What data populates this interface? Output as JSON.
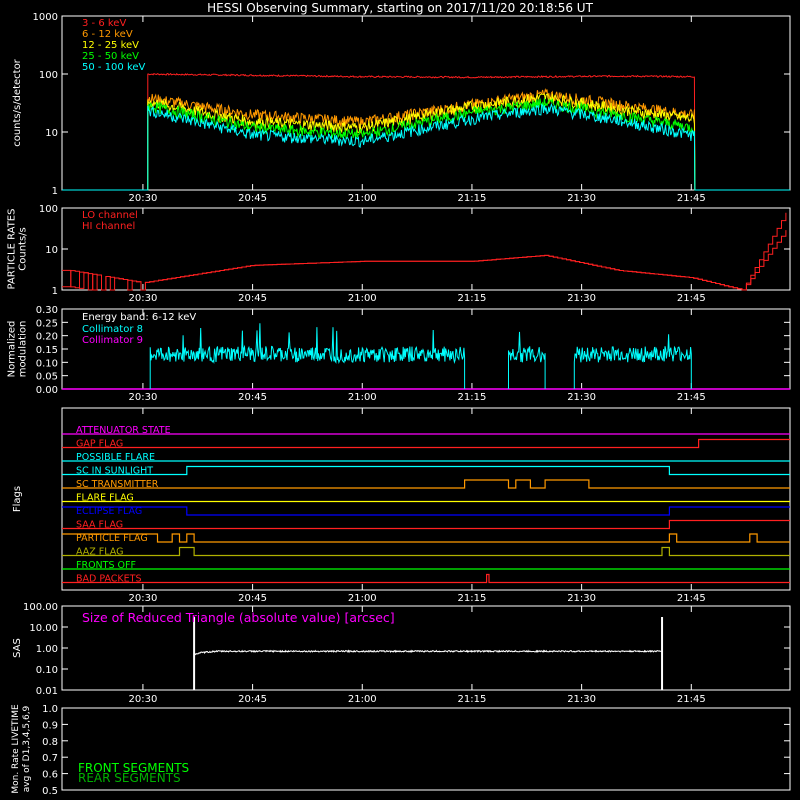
{
  "title": "HESSI Observing Summary, starting on 2017/11/20 20:18:56 UT",
  "colors": {
    "bg": "#000000",
    "axis": "#ffffff",
    "red": "#ff2020",
    "orange": "#ff9900",
    "yellow": "#ffff00",
    "green": "#00ff00",
    "cyan": "#00ffff",
    "magenta": "#ff00ff",
    "blue": "#0000ff",
    "olive": "#b0b000",
    "darkgreen": "#00b000",
    "gray": "#888888"
  },
  "time_axis": {
    "start": "20:18:56",
    "end": "21:58:30",
    "ticks": [
      "20:30",
      "20:45",
      "21:00",
      "21:15",
      "21:30",
      "21:45"
    ]
  },
  "chart_data": [
    {
      "type": "line",
      "id": "count_rates",
      "ylabel": "counts/s/detector",
      "scale": "log",
      "ylim": [
        1,
        1000
      ],
      "yticks": [
        "1",
        "10",
        "100",
        "1000"
      ],
      "legend_position": "top-left",
      "x": [
        "20:30",
        "20:45",
        "21:00",
        "21:15",
        "21:25",
        "21:35",
        "21:45"
      ],
      "series": [
        {
          "name": "3 - 6 keV",
          "color": "red",
          "values": [
            100,
            95,
            90,
            88,
            90,
            92,
            90
          ]
        },
        {
          "name": "6 - 12 keV",
          "color": "orange",
          "values": [
            40,
            20,
            15,
            30,
            45,
            30,
            20
          ]
        },
        {
          "name": "12 - 25 keV",
          "color": "yellow",
          "values": [
            35,
            15,
            12,
            28,
            40,
            25,
            17
          ]
        },
        {
          "name": "25 - 50 keV",
          "color": "green",
          "values": [
            30,
            12,
            9,
            22,
            32,
            20,
            12
          ]
        },
        {
          "name": "50 - 100 keV",
          "color": "cyan",
          "values": [
            25,
            9,
            7,
            17,
            26,
            16,
            9
          ]
        }
      ]
    },
    {
      "type": "line",
      "id": "particle_rates",
      "ylabel": "PARTICLE RATES\nCounts/s",
      "scale": "log",
      "ylim": [
        1,
        100
      ],
      "yticks": [
        "1",
        "10",
        "100"
      ],
      "legend_position": "top-left",
      "x": [
        "20:20",
        "20:30",
        "20:45",
        "21:00",
        "21:15",
        "21:25",
        "21:35",
        "21:45",
        "21:52",
        "21:58"
      ],
      "series": [
        {
          "name": "LO channel",
          "color": "red",
          "values": [
            3,
            1.5,
            4,
            5,
            5,
            7,
            3,
            2,
            1,
            80
          ]
        },
        {
          "name": "HI channel",
          "color": "red",
          "values": [
            3,
            1.5,
            4,
            5,
            5,
            7,
            3,
            2,
            1,
            30
          ]
        }
      ]
    },
    {
      "type": "line",
      "id": "modulation",
      "ylabel": "Normalized\nmodulation",
      "ylim": [
        0,
        0.3
      ],
      "yticks": [
        "0.00",
        "0.05",
        "0.10",
        "0.15",
        "0.20",
        "0.25",
        "0.30"
      ],
      "legend_position": "top-left",
      "legend_title": "Energy band: 6-12 keV",
      "series": [
        {
          "name": "Collimator 8",
          "color": "cyan",
          "mean": 0.13,
          "intervals": [
            [
              "20:31",
              "21:14"
            ],
            [
              "21:20",
              "21:25"
            ],
            [
              "21:29",
              "21:45"
            ]
          ]
        },
        {
          "name": "Collimator 9",
          "color": "magenta",
          "mean": 0.0
        }
      ]
    },
    {
      "type": "line",
      "id": "sas",
      "ylabel": "SAS",
      "scale": "log",
      "ylim": [
        0.01,
        100
      ],
      "yticks": [
        "0.01",
        "0.10",
        "1.00",
        "10.00",
        "100.00"
      ],
      "annotation": "Size of Reduced Triangle (absolute value) [arcsec]",
      "x": [
        "20:37",
        "20:38",
        "20:40",
        "21:00",
        "21:20",
        "21:41"
      ],
      "series": [
        {
          "color": "axis",
          "values": [
            0.5,
            0.6,
            0.7,
            0.7,
            0.7,
            0.7
          ]
        }
      ]
    },
    {
      "type": "line",
      "id": "livetime",
      "ylabel": "Mon. Rate LIVETIME\navg of D1,3,4,5,6,9",
      "ylim": [
        0.5,
        1.0
      ],
      "yticks": [
        "0.5",
        "0.6",
        "0.7",
        "0.8",
        "0.9",
        "1.0"
      ],
      "legend": [
        {
          "name": "FRONT SEGMENTS",
          "color": "green"
        },
        {
          "name": "REAR SEGMENTS",
          "color": "darkgreen"
        }
      ]
    }
  ],
  "flags": {
    "ylabel": "Flags",
    "items": [
      {
        "name": "ATTENUATOR STATE",
        "color": "magenta",
        "on": []
      },
      {
        "name": "GAP FLAG",
        "color": "red",
        "on": [
          [
            "21:46",
            "21:58:30"
          ]
        ]
      },
      {
        "name": "POSSIBLE FLARE",
        "color": "cyan",
        "on": []
      },
      {
        "name": "SC IN SUNLIGHT",
        "color": "cyan",
        "on": [
          [
            "20:36",
            "21:42"
          ]
        ]
      },
      {
        "name": "SC TRANSMITTER",
        "color": "orange",
        "on": [
          [
            "21:14",
            "21:20"
          ],
          [
            "21:21",
            "21:23"
          ],
          [
            "21:25",
            "21:31"
          ]
        ]
      },
      {
        "name": "FLARE FLAG",
        "color": "yellow",
        "on": []
      },
      {
        "name": "ECLIPSE FLAG",
        "color": "blue",
        "on": [
          [
            "20:18:56",
            "20:36"
          ],
          [
            "21:42",
            "21:58:30"
          ]
        ]
      },
      {
        "name": "SAA FLAG",
        "color": "red",
        "on": [
          [
            "21:42",
            "21:58:30"
          ]
        ]
      },
      {
        "name": "PARTICLE FLAG",
        "color": "orange",
        "on": [
          [
            "20:18:56",
            "20:32"
          ],
          [
            "20:34",
            "20:35"
          ],
          [
            "20:36",
            "20:37"
          ],
          [
            "21:42",
            "21:43"
          ],
          [
            "21:53",
            "21:54"
          ]
        ]
      },
      {
        "name": "AAZ FLAG",
        "color": "olive",
        "on": [
          [
            "20:35",
            "20:37"
          ],
          [
            "21:41",
            "21:42"
          ]
        ]
      },
      {
        "name": "FRONTS OFF",
        "color": "green",
        "on": []
      },
      {
        "name": "BAD PACKETS",
        "color": "red",
        "on": [
          [
            "21:17",
            "21:17:20"
          ]
        ]
      }
    ]
  }
}
